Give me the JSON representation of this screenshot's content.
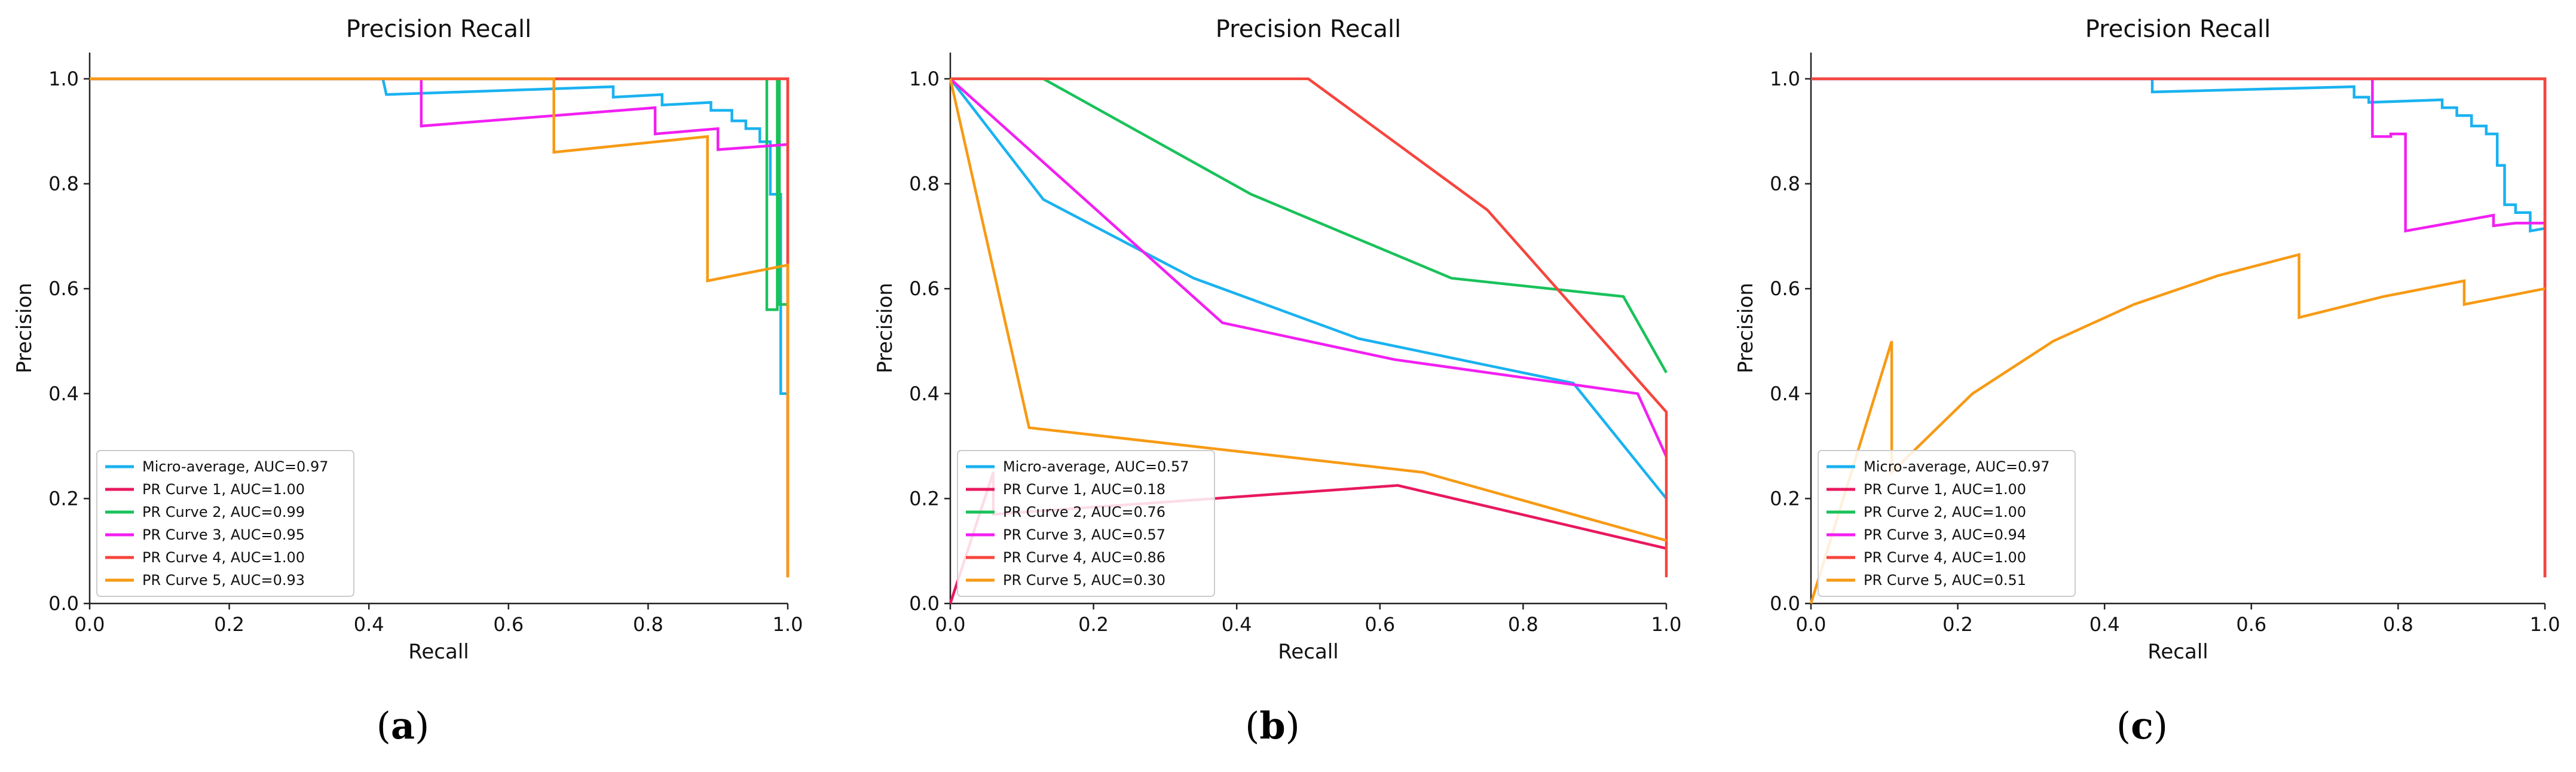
{
  "chart_data": [
    {
      "type": "line",
      "panel": "a",
      "caption": "a",
      "title": "Precision Recall",
      "xlabel": "Recall",
      "ylabel": "Precision",
      "xlim": [
        0,
        1
      ],
      "ylim": [
        0,
        1.05
      ],
      "xticks": [
        0,
        0.2,
        0.4,
        0.6,
        0.8,
        1.0
      ],
      "yticks": [
        0,
        0.2,
        0.4,
        0.6,
        0.8,
        1.0
      ],
      "tick_labels": [
        "0.0",
        "0.2",
        "0.4",
        "0.6",
        "0.8",
        "1.0"
      ],
      "legend_position": "bottom-left",
      "series": [
        {
          "name": "Micro-average, AUC=0.97",
          "color": "#1ab2f0",
          "points": [
            [
              0,
              1
            ],
            [
              0.42,
              1
            ],
            [
              0.425,
              0.97
            ],
            [
              0.75,
              0.985
            ],
            [
              0.75,
              0.965
            ],
            [
              0.82,
              0.97
            ],
            [
              0.82,
              0.95
            ],
            [
              0.89,
              0.955
            ],
            [
              0.89,
              0.94
            ],
            [
              0.92,
              0.94
            ],
            [
              0.92,
              0.92
            ],
            [
              0.94,
              0.92
            ],
            [
              0.94,
              0.905
            ],
            [
              0.96,
              0.905
            ],
            [
              0.96,
              0.88
            ],
            [
              0.975,
              0.88
            ],
            [
              0.975,
              0.78
            ],
            [
              0.99,
              0.78
            ],
            [
              0.99,
              0.4
            ],
            [
              1,
              0.4
            ]
          ]
        },
        {
          "name": "PR Curve 1, AUC=1.00",
          "color": "#e8185f",
          "points": [
            [
              0,
              1
            ],
            [
              1,
              1
            ],
            [
              1,
              0.05
            ]
          ]
        },
        {
          "name": "PR Curve 2, AUC=0.99",
          "color": "#19c25a",
          "points": [
            [
              0,
              1
            ],
            [
              0.97,
              1
            ],
            [
              0.97,
              0.56
            ],
            [
              0.985,
              0.56
            ],
            [
              0.985,
              1
            ],
            [
              0.988,
              1
            ],
            [
              0.988,
              0.57
            ],
            [
              1,
              0.57
            ]
          ]
        },
        {
          "name": "PR Curve 3, AUC=0.95",
          "color": "#f21ff2",
          "points": [
            [
              0,
              1
            ],
            [
              0.475,
              1
            ],
            [
              0.475,
              0.91
            ],
            [
              0.81,
              0.945
            ],
            [
              0.81,
              0.895
            ],
            [
              0.9,
              0.905
            ],
            [
              0.9,
              0.865
            ],
            [
              0.95,
              0.87
            ],
            [
              0.95,
              0.87
            ],
            [
              1,
              0.875
            ]
          ]
        },
        {
          "name": "PR Curve 4, AUC=1.00",
          "color": "#f6453d",
          "points": [
            [
              0,
              1
            ],
            [
              1,
              1
            ],
            [
              1,
              0.1
            ]
          ]
        },
        {
          "name": "PR Curve 5, AUC=0.93",
          "color": "#f79a14",
          "points": [
            [
              0,
              1
            ],
            [
              0.665,
              1
            ],
            [
              0.665,
              0.86
            ],
            [
              0.885,
              0.89
            ],
            [
              0.885,
              0.615
            ],
            [
              1,
              0.645
            ],
            [
              1,
              0.05
            ]
          ]
        }
      ]
    },
    {
      "type": "line",
      "panel": "b",
      "caption": "b",
      "title": "Precision Recall",
      "xlabel": "Recall",
      "ylabel": "Precision",
      "xlim": [
        0,
        1
      ],
      "ylim": [
        0,
        1.05
      ],
      "xticks": [
        0,
        0.2,
        0.4,
        0.6,
        0.8,
        1.0
      ],
      "yticks": [
        0,
        0.2,
        0.4,
        0.6,
        0.8,
        1.0
      ],
      "tick_labels": [
        "0.0",
        "0.2",
        "0.4",
        "0.6",
        "0.8",
        "1.0"
      ],
      "legend_position": "bottom-left",
      "series": [
        {
          "name": "Micro-average, AUC=0.57",
          "color": "#1ab2f0",
          "points": [
            [
              0,
              1
            ],
            [
              0.13,
              0.77
            ],
            [
              0.34,
              0.62
            ],
            [
              0.57,
              0.505
            ],
            [
              0.87,
              0.42
            ],
            [
              1,
              0.2
            ]
          ]
        },
        {
          "name": "PR Curve 1, AUC=0.18",
          "color": "#e8185f",
          "points": [
            [
              0,
              0
            ],
            [
              0.06,
              0.25
            ],
            [
              0.06,
              0.17
            ],
            [
              0.625,
              0.225
            ],
            [
              1,
              0.105
            ]
          ]
        },
        {
          "name": "PR Curve 2, AUC=0.76",
          "color": "#19c25a",
          "points": [
            [
              0,
              1
            ],
            [
              0.13,
              1
            ],
            [
              0.42,
              0.78
            ],
            [
              0.7,
              0.62
            ],
            [
              0.94,
              0.585
            ],
            [
              1,
              0.44
            ]
          ]
        },
        {
          "name": "PR Curve 3, AUC=0.57",
          "color": "#f21ff2",
          "points": [
            [
              0,
              1
            ],
            [
              0.38,
              0.535
            ],
            [
              0.62,
              0.465
            ],
            [
              0.96,
              0.4
            ],
            [
              1,
              0.28
            ]
          ]
        },
        {
          "name": "PR Curve 4, AUC=0.86",
          "color": "#f6453d",
          "points": [
            [
              0,
              1
            ],
            [
              0.5,
              1
            ],
            [
              0.75,
              0.75
            ],
            [
              1,
              0.365
            ],
            [
              1,
              0.05
            ]
          ]
        },
        {
          "name": "PR Curve 5, AUC=0.30",
          "color": "#f79a14",
          "points": [
            [
              0,
              1
            ],
            [
              0.11,
              0.335
            ],
            [
              0.66,
              0.25
            ],
            [
              1,
              0.12
            ]
          ]
        }
      ]
    },
    {
      "type": "line",
      "panel": "c",
      "caption": "c",
      "title": "Precision Recall",
      "xlabel": "Recall",
      "ylabel": "Precision",
      "xlim": [
        0,
        1
      ],
      "ylim": [
        0,
        1.05
      ],
      "xticks": [
        0,
        0.2,
        0.4,
        0.6,
        0.8,
        1.0
      ],
      "yticks": [
        0,
        0.2,
        0.4,
        0.6,
        0.8,
        1.0
      ],
      "tick_labels": [
        "0.0",
        "0.2",
        "0.4",
        "0.6",
        "0.8",
        "1.0"
      ],
      "legend_position": "bottom-left",
      "series": [
        {
          "name": "Micro-average, AUC=0.97",
          "color": "#1ab2f0",
          "points": [
            [
              0,
              1
            ],
            [
              0.465,
              1
            ],
            [
              0.465,
              0.975
            ],
            [
              0.74,
              0.985
            ],
            [
              0.74,
              0.965
            ],
            [
              0.76,
              0.965
            ],
            [
              0.76,
              0.955
            ],
            [
              0.86,
              0.96
            ],
            [
              0.86,
              0.945
            ],
            [
              0.88,
              0.945
            ],
            [
              0.88,
              0.93
            ],
            [
              0.9,
              0.93
            ],
            [
              0.9,
              0.91
            ],
            [
              0.92,
              0.91
            ],
            [
              0.92,
              0.895
            ],
            [
              0.935,
              0.895
            ],
            [
              0.935,
              0.835
            ],
            [
              0.945,
              0.835
            ],
            [
              0.945,
              0.76
            ],
            [
              0.96,
              0.76
            ],
            [
              0.96,
              0.745
            ],
            [
              0.98,
              0.745
            ],
            [
              0.98,
              0.71
            ],
            [
              1,
              0.715
            ]
          ]
        },
        {
          "name": "PR Curve 1, AUC=1.00",
          "color": "#e8185f",
          "points": [
            [
              0,
              1
            ],
            [
              1,
              1
            ],
            [
              1,
              0.05
            ]
          ]
        },
        {
          "name": "PR Curve 2, AUC=1.00",
          "color": "#19c25a",
          "points": [
            [
              0,
              1
            ],
            [
              1,
              1
            ]
          ]
        },
        {
          "name": "PR Curve 3, AUC=0.94",
          "color": "#f21ff2",
          "points": [
            [
              0,
              1
            ],
            [
              0.765,
              1
            ],
            [
              0.765,
              0.89
            ],
            [
              0.79,
              0.89
            ],
            [
              0.79,
              0.895
            ],
            [
              0.81,
              0.895
            ],
            [
              0.81,
              0.71
            ],
            [
              0.93,
              0.74
            ],
            [
              0.93,
              0.72
            ],
            [
              0.96,
              0.725
            ],
            [
              0.96,
              0.725
            ],
            [
              1,
              0.725
            ]
          ]
        },
        {
          "name": "PR Curve 4, AUC=1.00",
          "color": "#f6453d",
          "points": [
            [
              0,
              1
            ],
            [
              1,
              1
            ],
            [
              1,
              0.05
            ]
          ]
        },
        {
          "name": "PR Curve 5, AUC=0.51",
          "color": "#f79a14",
          "points": [
            [
              0,
              0
            ],
            [
              0.11,
              0.5
            ],
            [
              0.11,
              0.25
            ],
            [
              0.22,
              0.4
            ],
            [
              0.33,
              0.5
            ],
            [
              0.44,
              0.57
            ],
            [
              0.555,
              0.625
            ],
            [
              0.665,
              0.665
            ],
            [
              0.665,
              0.545
            ],
            [
              0.78,
              0.585
            ],
            [
              0.89,
              0.615
            ],
            [
              0.89,
              0.57
            ],
            [
              1,
              0.6
            ]
          ]
        }
      ]
    }
  ]
}
